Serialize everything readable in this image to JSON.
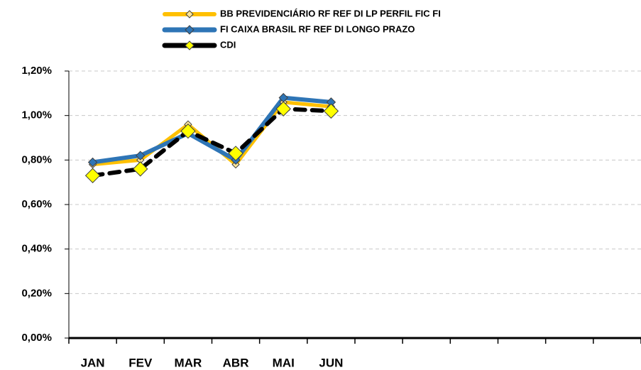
{
  "chart_data": {
    "type": "line",
    "categories": [
      "JAN",
      "FEV",
      "MAR",
      "ABR",
      "MAI",
      "JUN",
      null,
      null,
      null,
      null,
      null,
      null
    ],
    "series": [
      {
        "name": "BB PREVIDENCIÁRIO RF REF DI LP PERFIL FIC FI",
        "color": "#ffc000",
        "marker_color": "#ffe699",
        "values": [
          0.78,
          0.8,
          0.96,
          0.78,
          1.06,
          1.04,
          null,
          null,
          null,
          null,
          null,
          null
        ]
      },
      {
        "name": "FI CAIXA BRASIL RF REF DI LONGO PRAZO",
        "color": "#2e75b6",
        "marker_color": "#2e75b6",
        "values": [
          0.79,
          0.82,
          0.92,
          0.8,
          1.08,
          1.06,
          null,
          null,
          null,
          null,
          null,
          null
        ]
      },
      {
        "name": "CDI",
        "color": "#000000",
        "marker_color": "#ffff00",
        "values": [
          0.73,
          0.76,
          0.93,
          0.83,
          1.03,
          1.02,
          null,
          null,
          null,
          null,
          null,
          null
        ]
      }
    ],
    "ylim": [
      0,
      1.2
    ],
    "yticks": [
      {
        "value": 0,
        "label": "0,00%"
      },
      {
        "value": 0.2,
        "label": "0,20%"
      },
      {
        "value": 0.4,
        "label": "0,40%"
      },
      {
        "value": 0.6,
        "label": "0,60%"
      },
      {
        "value": 0.8,
        "label": "0,80%"
      },
      {
        "value": 1.0,
        "label": "1,00%"
      },
      {
        "value": 1.2,
        "label": "1,20%"
      }
    ],
    "grid": true,
    "legend": "top"
  }
}
